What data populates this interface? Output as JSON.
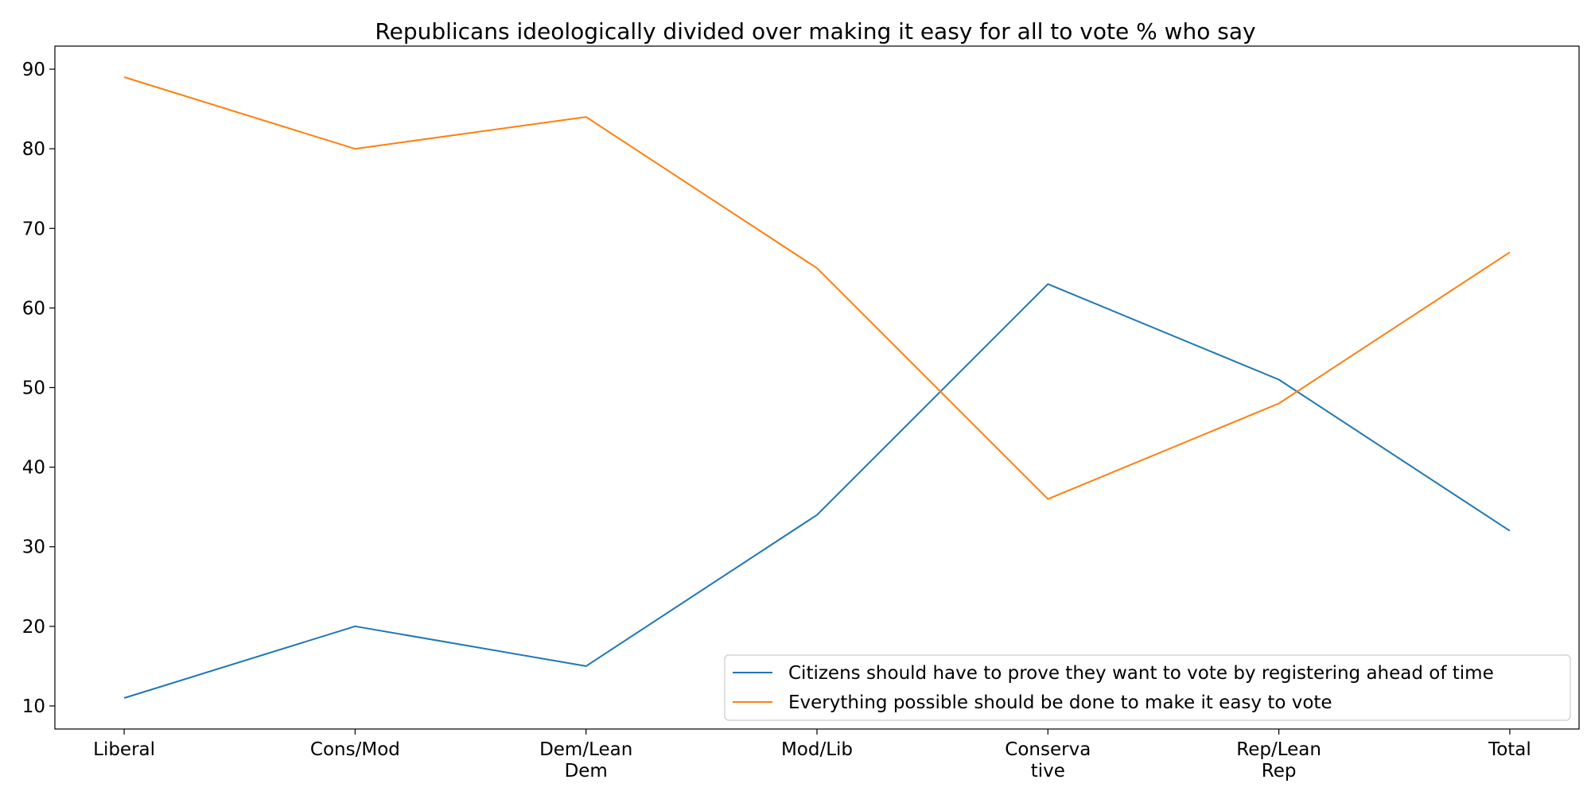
{
  "chart_data": {
    "type": "line",
    "title": "Republicans ideologically divided over making it easy for all to vote % who say",
    "xlabel": "",
    "ylabel": "",
    "categories": [
      [
        "Liberal"
      ],
      [
        "Cons/Mod"
      ],
      [
        "Dem/Lean",
        "Dem"
      ],
      [
        "Mod/Lib"
      ],
      [
        "Conserva",
        "tive"
      ],
      [
        "Rep/Lean",
        "Rep"
      ],
      [
        "Total"
      ]
    ],
    "series": [
      {
        "name": "Citizens should have to prove they want to vote by registering ahead of time",
        "color": "#1f77b4",
        "values": [
          11,
          20,
          15,
          34,
          63,
          51,
          32
        ]
      },
      {
        "name": "Everything possible should be done to make it easy to vote",
        "color": "#ff7f0e",
        "values": [
          89,
          80,
          84,
          65,
          36,
          48,
          67
        ]
      }
    ],
    "ylim": [
      7.1,
      92.9
    ],
    "yticks": [
      10,
      20,
      30,
      40,
      50,
      60,
      70,
      80,
      90
    ],
    "grid": false,
    "legend_position": "lower-right"
  }
}
